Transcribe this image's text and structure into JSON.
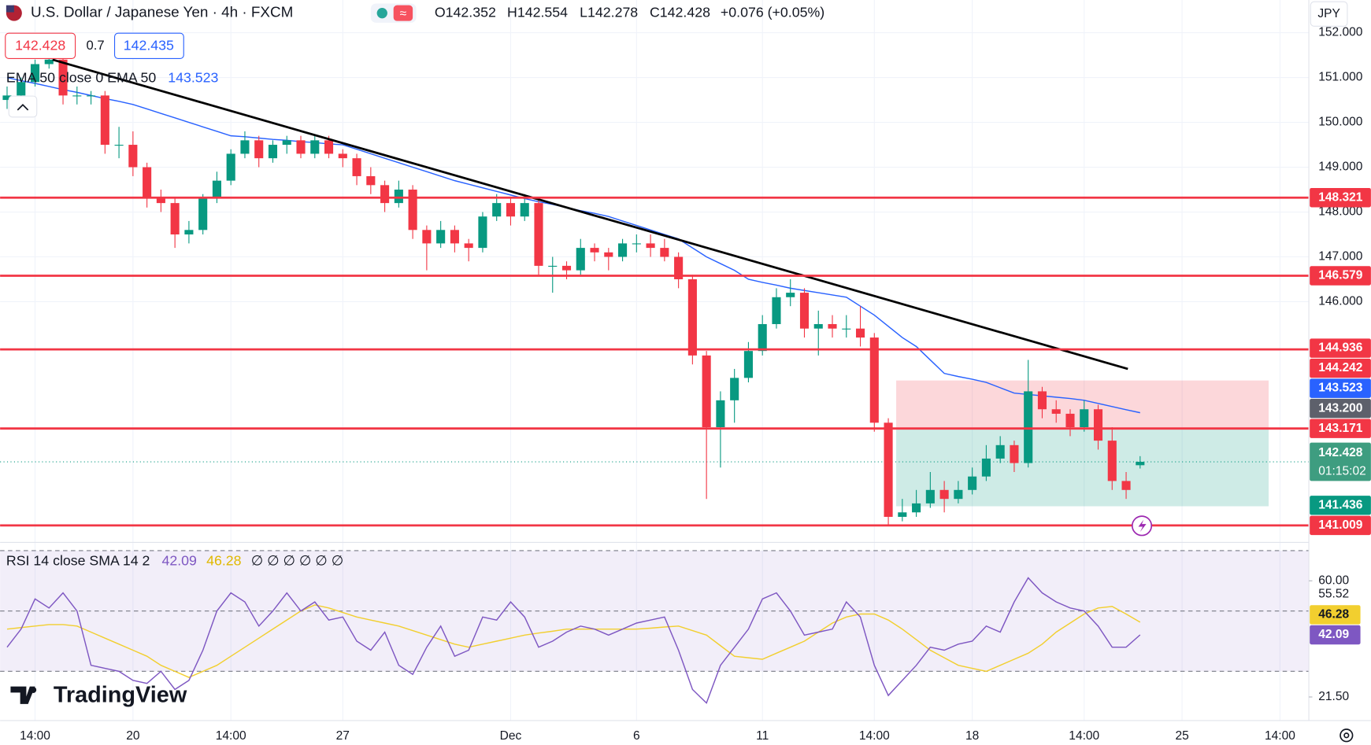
{
  "chart_data": {
    "type": "candlestick",
    "title": "U.S. Dollar / Japanese Yen · 4h · FXCM",
    "header": {
      "open": "O142.352",
      "high": "H142.554",
      "low": "L142.278",
      "close": "C142.428",
      "change": "+0.076 (+0.05%)"
    },
    "bid": "142.428",
    "spread": "0.7",
    "ask": "142.435",
    "currency": "JPY",
    "categories": [
      null,
      null,
      "14:00",
      null,
      null,
      null,
      null,
      null,
      null,
      "20",
      null,
      null,
      null,
      null,
      null,
      null,
      "14:00",
      null,
      null,
      null,
      null,
      null,
      null,
      null,
      "27",
      null,
      null,
      null,
      null,
      null,
      null,
      null,
      null,
      null,
      null,
      null,
      "Dec",
      null,
      null,
      null,
      null,
      null,
      null,
      null,
      null,
      "6",
      null,
      null,
      null,
      null,
      null,
      null,
      null,
      null,
      "11",
      null,
      null,
      null,
      null,
      null,
      null,
      null,
      "14:00",
      null,
      null,
      null,
      null,
      null,
      null,
      "18",
      null,
      null,
      null,
      null,
      null,
      null,
      null,
      "14:00",
      null,
      null,
      null,
      null,
      null,
      null,
      "25",
      null,
      null,
      null,
      null,
      null,
      null,
      "14:00"
    ],
    "ohlc": [
      [
        150.5,
        150.8,
        150.3,
        150.6
      ],
      [
        150.6,
        151.0,
        150.5,
        150.9
      ],
      [
        150.9,
        151.4,
        150.8,
        151.3
      ],
      [
        151.3,
        151.6,
        151.2,
        151.4
      ],
      [
        151.4,
        151.5,
        150.4,
        150.6
      ],
      [
        150.6,
        150.8,
        150.4,
        150.6
      ],
      [
        150.6,
        150.7,
        150.4,
        150.6
      ],
      [
        150.6,
        150.7,
        149.3,
        149.5
      ],
      [
        149.5,
        149.9,
        149.2,
        149.5
      ],
      [
        149.5,
        149.8,
        148.8,
        149.0
      ],
      [
        149.0,
        149.1,
        148.1,
        148.3
      ],
      [
        148.3,
        148.5,
        148.0,
        148.2
      ],
      [
        148.2,
        148.3,
        147.2,
        147.5
      ],
      [
        147.5,
        147.8,
        147.3,
        147.6
      ],
      [
        147.6,
        148.4,
        147.5,
        148.3
      ],
      [
        148.3,
        148.9,
        148.2,
        148.7
      ],
      [
        148.7,
        149.4,
        148.6,
        149.3
      ],
      [
        149.3,
        149.8,
        149.2,
        149.6
      ],
      [
        149.6,
        149.7,
        149.0,
        149.2
      ],
      [
        149.2,
        149.6,
        149.1,
        149.5
      ],
      [
        149.5,
        149.7,
        149.3,
        149.6
      ],
      [
        149.6,
        149.7,
        149.2,
        149.3
      ],
      [
        149.3,
        149.7,
        149.2,
        149.6
      ],
      [
        149.6,
        149.7,
        149.2,
        149.3
      ],
      [
        149.3,
        149.4,
        149.0,
        149.2
      ],
      [
        149.2,
        149.3,
        148.6,
        148.8
      ],
      [
        148.8,
        149.0,
        148.4,
        148.6
      ],
      [
        148.6,
        148.7,
        148.0,
        148.2
      ],
      [
        148.2,
        148.7,
        148.1,
        148.5
      ],
      [
        148.5,
        148.6,
        147.4,
        147.6
      ],
      [
        147.6,
        147.7,
        146.7,
        147.3
      ],
      [
        147.3,
        147.8,
        147.2,
        147.6
      ],
      [
        147.6,
        147.7,
        147.1,
        147.3
      ],
      [
        147.3,
        147.4,
        146.9,
        147.2
      ],
      [
        147.2,
        148.0,
        147.1,
        147.9
      ],
      [
        147.9,
        148.4,
        147.8,
        148.2
      ],
      [
        148.2,
        148.3,
        147.7,
        147.9
      ],
      [
        147.9,
        148.4,
        147.8,
        148.2
      ],
      [
        148.2,
        148.3,
        146.6,
        146.8
      ],
      [
        146.8,
        147.0,
        146.2,
        146.8
      ],
      [
        146.8,
        146.9,
        146.5,
        146.7
      ],
      [
        146.7,
        147.4,
        146.6,
        147.2
      ],
      [
        147.2,
        147.3,
        146.9,
        147.1
      ],
      [
        147.1,
        147.2,
        146.7,
        147.0
      ],
      [
        147.0,
        147.4,
        146.9,
        147.3
      ],
      [
        147.3,
        147.5,
        147.1,
        147.3
      ],
      [
        147.3,
        147.5,
        147.0,
        147.2
      ],
      [
        147.2,
        147.4,
        146.9,
        147.0
      ],
      [
        147.0,
        147.1,
        146.3,
        146.5
      ],
      [
        146.5,
        146.6,
        144.6,
        144.8
      ],
      [
        144.8,
        144.9,
        141.6,
        143.2
      ],
      [
        143.2,
        144.0,
        142.3,
        143.8
      ],
      [
        143.8,
        144.5,
        143.3,
        144.3
      ],
      [
        144.3,
        145.1,
        144.2,
        144.9
      ],
      [
        144.9,
        145.7,
        144.8,
        145.5
      ],
      [
        145.5,
        146.3,
        145.4,
        146.1
      ],
      [
        146.1,
        146.5,
        145.9,
        146.2
      ],
      [
        146.2,
        146.3,
        145.2,
        145.4
      ],
      [
        145.4,
        145.8,
        144.8,
        145.5
      ],
      [
        145.5,
        145.7,
        145.2,
        145.4
      ],
      [
        145.4,
        145.7,
        145.2,
        145.4
      ],
      [
        145.4,
        145.9,
        145.0,
        145.2
      ],
      [
        145.2,
        145.3,
        143.1,
        143.3
      ],
      [
        143.3,
        143.4,
        141.0,
        141.2
      ],
      [
        141.2,
        141.6,
        141.1,
        141.3
      ],
      [
        141.3,
        141.8,
        141.2,
        141.5
      ],
      [
        141.5,
        142.2,
        141.4,
        141.8
      ],
      [
        141.8,
        142.0,
        141.3,
        141.6
      ],
      [
        141.6,
        142.0,
        141.5,
        141.8
      ],
      [
        141.8,
        142.3,
        141.7,
        142.1
      ],
      [
        142.1,
        142.8,
        142.0,
        142.5
      ],
      [
        142.5,
        143.0,
        142.4,
        142.8
      ],
      [
        142.8,
        142.9,
        142.2,
        142.4
      ],
      [
        142.4,
        144.7,
        142.3,
        144.0
      ],
      [
        144.0,
        144.1,
        143.4,
        143.6
      ],
      [
        143.6,
        143.8,
        143.3,
        143.5
      ],
      [
        143.5,
        143.6,
        143.0,
        143.2
      ],
      [
        143.2,
        143.8,
        143.1,
        143.6
      ],
      [
        143.6,
        143.7,
        142.7,
        142.9
      ],
      [
        142.9,
        143.2,
        141.8,
        142.0
      ],
      [
        142.0,
        142.2,
        141.6,
        141.8
      ],
      [
        142.352,
        142.554,
        142.278,
        142.428
      ],
      null,
      null,
      null,
      null,
      null,
      null,
      null,
      null,
      null,
      null
    ],
    "colors": {
      "up": "#089981",
      "down": "#f23645"
    },
    "ylim": [
      140.65,
      152.73
    ],
    "yticks": [
      {
        "value": 152,
        "label": "152.000"
      },
      {
        "value": 151,
        "label": "151.000"
      },
      {
        "value": 150,
        "label": "150.000"
      },
      {
        "value": 149,
        "label": "149.000"
      },
      {
        "value": 148,
        "label": "148.000"
      },
      {
        "value": 147,
        "label": "147.000"
      },
      {
        "value": 146,
        "label": "146.000"
      }
    ],
    "grid": true,
    "ema": {
      "name": "EMA 50 close 0 EMA 50",
      "color": "#2962ff",
      "last": 143.523,
      "values": [
        151.0,
        150.93,
        150.87,
        150.8,
        150.73,
        150.67,
        150.6,
        150.53,
        150.47,
        150.4,
        150.3,
        150.2,
        150.1,
        150.0,
        149.9,
        149.8,
        149.7,
        149.68,
        149.65,
        149.62,
        149.6,
        149.57,
        149.55,
        149.52,
        149.5,
        149.4,
        149.3,
        149.2,
        149.1,
        149.0,
        148.9,
        148.8,
        148.7,
        148.62,
        148.54,
        148.46,
        148.38,
        148.3,
        148.23,
        148.17,
        148.1,
        148.03,
        147.97,
        147.9,
        147.8,
        147.7,
        147.6,
        147.5,
        147.4,
        147.2,
        147.0,
        146.85,
        146.7,
        146.5,
        146.43,
        146.37,
        146.3,
        146.25,
        146.2,
        146.15,
        146.1,
        145.9,
        145.7,
        145.45,
        145.2,
        145.0,
        144.7,
        144.4,
        144.33,
        144.27,
        144.2,
        144.08,
        143.96,
        143.93,
        143.9,
        143.87,
        143.84,
        143.8,
        143.73,
        143.66,
        143.59,
        143.523,
        null,
        null,
        null,
        null,
        null,
        null,
        null,
        null,
        null,
        null
      ]
    },
    "trendline": [
      151.4,
      144.5
    ],
    "levels": {
      "color": "#f23645",
      "values": [
        148.321,
        146.579,
        144.936,
        143.171,
        141.009
      ]
    },
    "position": {
      "stop": 144.242,
      "target": 141.436
    },
    "marker_price": {
      "value": 143.2,
      "label": "143.200"
    },
    "last_price": {
      "value": 142.428,
      "countdown": "01:15:02"
    },
    "rsi": {
      "name": "RSI 14 close SMA 14 2",
      "color": "#7e57c2",
      "last": 42.09,
      "placeholders": "∅ ∅ ∅ ∅ ∅ ∅",
      "values": [
        38,
        44,
        54,
        51,
        56,
        50,
        32,
        31,
        30,
        27,
        26,
        30,
        24,
        27,
        37,
        50,
        56,
        53,
        45,
        50,
        56,
        50,
        53,
        47,
        48,
        40,
        37,
        43,
        32,
        29,
        38,
        45,
        35,
        37,
        48,
        47,
        53,
        48,
        38,
        40,
        43,
        45,
        44,
        42,
        44,
        46,
        47,
        48,
        37,
        24,
        19.5,
        32,
        38,
        44,
        54,
        56,
        50,
        42,
        43,
        44,
        53,
        48,
        32,
        22,
        27,
        32,
        38,
        37,
        39,
        40,
        45,
        43,
        53,
        61,
        56,
        53,
        51,
        50,
        45,
        38,
        38,
        42.09,
        null,
        null,
        null,
        null,
        null,
        null,
        null,
        null,
        null,
        null
      ],
      "sma": {
        "color": "#f2cf2f",
        "last": 46.28,
        "values": [
          44,
          44.5,
          45,
          45.5,
          45.5,
          45,
          43,
          41,
          39,
          37,
          35,
          32,
          30,
          28,
          30,
          32,
          35,
          38,
          41,
          44,
          47,
          50,
          52,
          51,
          49.5,
          48,
          47,
          46,
          45,
          43.5,
          42,
          40.5,
          39,
          38,
          39,
          40,
          41,
          42,
          42.7,
          43.3,
          44,
          44,
          44,
          44,
          44,
          44,
          44.3,
          44.7,
          45,
          43.5,
          42,
          38.5,
          35,
          34.5,
          34,
          36,
          38,
          40,
          43,
          46,
          48,
          49,
          49,
          47,
          44,
          40.5,
          37,
          34.5,
          32,
          31,
          30,
          32,
          34,
          36,
          39,
          43,
          46,
          49,
          51,
          51.5,
          49,
          46.28,
          null,
          null,
          null,
          null,
          null,
          null,
          null,
          null,
          null,
          null
        ]
      },
      "ylim": [
        14.56,
        72.45
      ],
      "yticks": [
        {
          "value": 60,
          "label": "60.00"
        },
        {
          "value": 21.5,
          "label": "21.50"
        }
      ],
      "bands": [
        70,
        50,
        30
      ],
      "hover_value": 55.52
    },
    "logo": "TradingView"
  }
}
